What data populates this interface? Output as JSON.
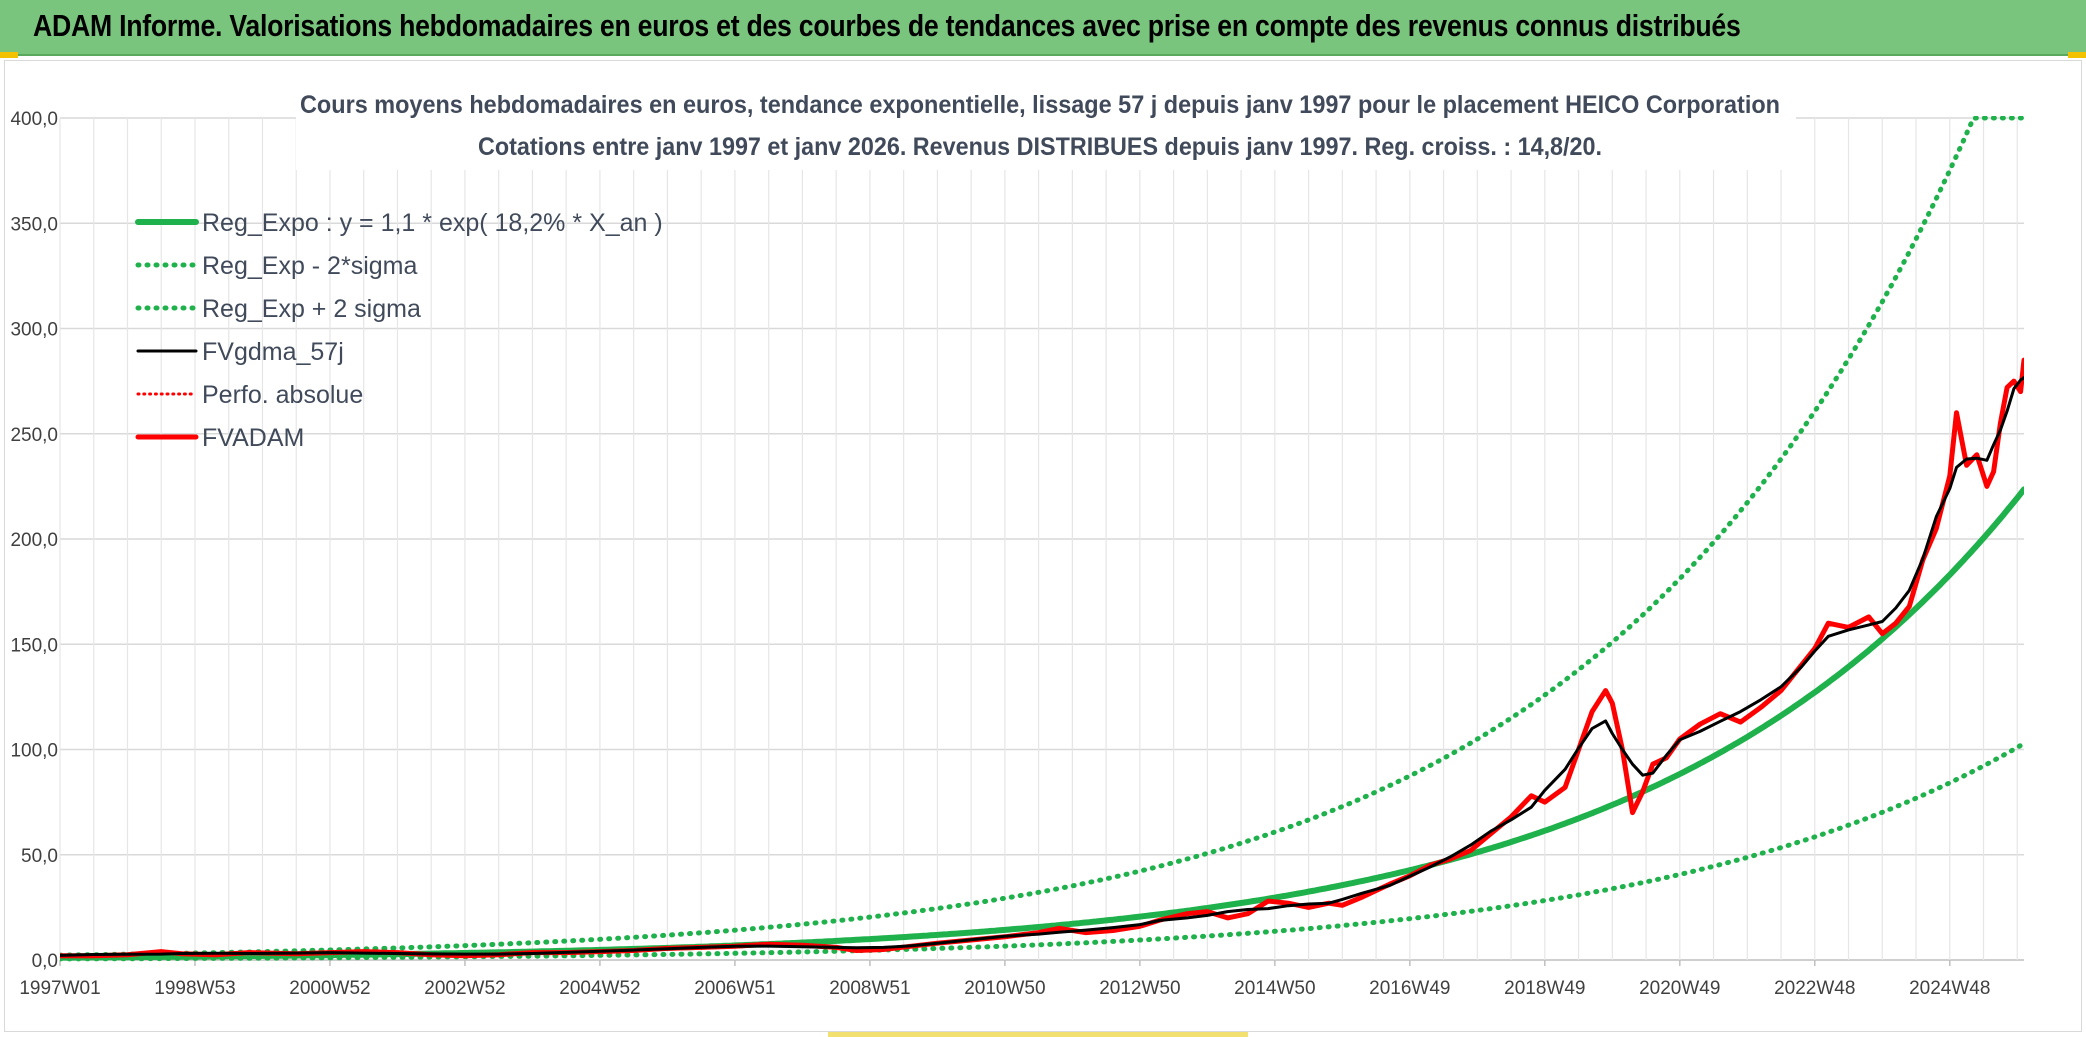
{
  "header": {
    "title": "ADAM Informe. Valorisations hebdomadaires en euros et des courbes de tendances avec prise en compte des revenus connus distribués"
  },
  "chart_data": {
    "type": "line",
    "title": "Cours moyens hebdomadaires en euros, tendance exponentielle, lissage 57 j depuis janv 1997 pour le placement HEICO Corporation",
    "subtitle": "Cotations entre janv 1997 et janv 2026. Revenus DISTRIBUES depuis janv 1997. Reg. croiss. : 14,8/20.",
    "xlabel": "",
    "ylabel": "",
    "x_range": [
      1997.0,
      2026.1
    ],
    "ylim": [
      0,
      400
    ],
    "y_ticks": [
      "0,0",
      "50,0",
      "100,0",
      "150,0",
      "200,0",
      "250,0",
      "300,0",
      "350,0",
      "400,0"
    ],
    "y_tick_values": [
      0,
      50,
      100,
      150,
      200,
      250,
      300,
      350,
      400
    ],
    "x_ticks": [
      "1997W01",
      "1998W53",
      "2000W52",
      "2002W52",
      "2004W52",
      "2006W51",
      "2008W51",
      "2010W50",
      "2012W50",
      "2014W50",
      "2016W49",
      "2018W49",
      "2020W49",
      "2022W48",
      "2024W48"
    ],
    "x_tick_years": [
      1997.0,
      1999.0,
      2001.0,
      2003.0,
      2005.0,
      2007.0,
      2009.0,
      2011.0,
      2013.0,
      2015.0,
      2017.0,
      2019.0,
      2021.0,
      2023.0,
      2025.0
    ],
    "legend_position": "top-left",
    "regression": {
      "a": 1.1,
      "rate": 0.182
    },
    "series": [
      {
        "name": "Reg_Expo : y = 1,1 * exp( 18,2% *  X_an )",
        "color": "#1fb14b",
        "style": "solid",
        "width": 6
      },
      {
        "name": "Reg_Exp - 2*sigma",
        "color": "#1fb14b",
        "style": "dotted",
        "width": 5
      },
      {
        "name": "Reg_Exp + 2 sigma",
        "color": "#1fb14b",
        "style": "dotted",
        "width": 5
      },
      {
        "name": "FVgdma_57j",
        "color": "#000000",
        "style": "solid",
        "width": 3
      },
      {
        "name": "Perfo. absolue",
        "color": "#ff0000",
        "style": "dotted",
        "width": 3
      },
      {
        "name": "FVADAM",
        "color": "#ff0000",
        "style": "solid",
        "width": 5,
        "points": [
          [
            1997.0,
            2
          ],
          [
            1997.5,
            2
          ],
          [
            1998.0,
            2.5
          ],
          [
            1998.5,
            4
          ],
          [
            1998.8,
            3
          ],
          [
            1999.3,
            2.5
          ],
          [
            1999.8,
            3.5
          ],
          [
            2000.5,
            3
          ],
          [
            2001.0,
            3.5
          ],
          [
            2001.5,
            4
          ],
          [
            2002.0,
            3.5
          ],
          [
            2002.5,
            2.5
          ],
          [
            2003.0,
            2
          ],
          [
            2003.5,
            2.5
          ],
          [
            2004.0,
            3.5
          ],
          [
            2004.5,
            3.5
          ],
          [
            2005.0,
            4
          ],
          [
            2005.5,
            4.5
          ],
          [
            2006.0,
            5.5
          ],
          [
            2006.5,
            6
          ],
          [
            2007.0,
            6.5
          ],
          [
            2007.5,
            7.5
          ],
          [
            2008.0,
            7
          ],
          [
            2008.5,
            6
          ],
          [
            2008.8,
            4.5
          ],
          [
            2009.2,
            5
          ],
          [
            2009.6,
            6.5
          ],
          [
            2010.0,
            8
          ],
          [
            2010.5,
            9.5
          ],
          [
            2011.0,
            11
          ],
          [
            2011.5,
            13
          ],
          [
            2011.8,
            15
          ],
          [
            2012.2,
            13
          ],
          [
            2012.6,
            14
          ],
          [
            2013.0,
            16
          ],
          [
            2013.3,
            19
          ],
          [
            2013.7,
            22
          ],
          [
            2014.0,
            23
          ],
          [
            2014.3,
            20
          ],
          [
            2014.6,
            22
          ],
          [
            2014.9,
            28
          ],
          [
            2015.2,
            27
          ],
          [
            2015.5,
            25
          ],
          [
            2015.8,
            27
          ],
          [
            2016.0,
            26
          ],
          [
            2016.3,
            30
          ],
          [
            2016.7,
            36
          ],
          [
            2017.0,
            40
          ],
          [
            2017.3,
            45
          ],
          [
            2017.6,
            48
          ],
          [
            2017.9,
            52
          ],
          [
            2018.2,
            60
          ],
          [
            2018.5,
            68
          ],
          [
            2018.8,
            78
          ],
          [
            2019.0,
            75
          ],
          [
            2019.3,
            82
          ],
          [
            2019.5,
            100
          ],
          [
            2019.7,
            118
          ],
          [
            2019.9,
            128
          ],
          [
            2020.0,
            122
          ],
          [
            2020.15,
            100
          ],
          [
            2020.3,
            70
          ],
          [
            2020.45,
            80
          ],
          [
            2020.6,
            93
          ],
          [
            2020.8,
            96
          ],
          [
            2021.0,
            105
          ],
          [
            2021.3,
            112
          ],
          [
            2021.6,
            117
          ],
          [
            2021.9,
            113
          ],
          [
            2022.2,
            120
          ],
          [
            2022.5,
            128
          ],
          [
            2022.8,
            140
          ],
          [
            2023.0,
            148
          ],
          [
            2023.2,
            160
          ],
          [
            2023.5,
            158
          ],
          [
            2023.8,
            163
          ],
          [
            2024.0,
            155
          ],
          [
            2024.2,
            160
          ],
          [
            2024.4,
            168
          ],
          [
            2024.6,
            190
          ],
          [
            2024.8,
            205
          ],
          [
            2025.0,
            230
          ],
          [
            2025.1,
            260
          ],
          [
            2025.25,
            235
          ],
          [
            2025.4,
            240
          ],
          [
            2025.55,
            225
          ],
          [
            2025.65,
            232
          ],
          [
            2025.75,
            255
          ],
          [
            2025.85,
            272
          ],
          [
            2025.95,
            275
          ],
          [
            2026.05,
            270
          ],
          [
            2026.1,
            285
          ]
        ]
      }
    ]
  }
}
